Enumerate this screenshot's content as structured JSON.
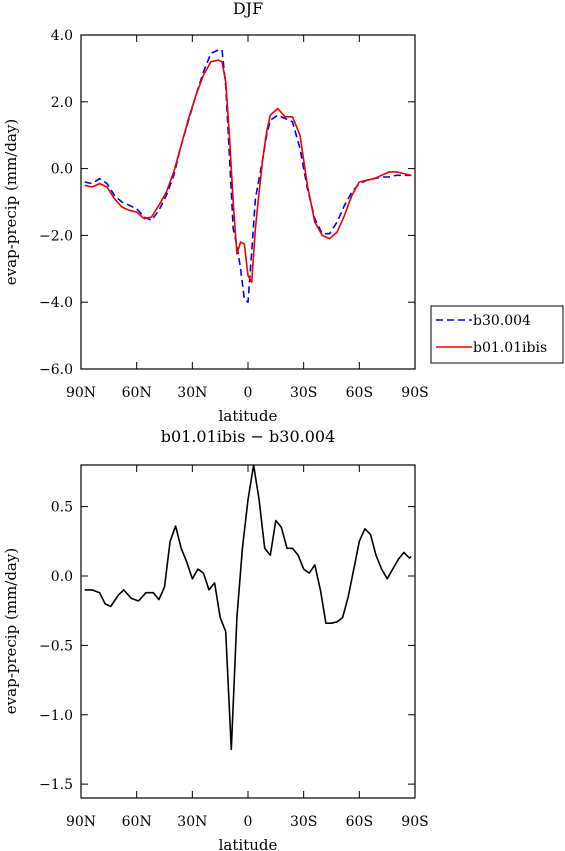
{
  "chart_data": [
    {
      "type": "line",
      "title": "DJF",
      "xlabel": "latitude",
      "ylabel": "evap-precip (mm/day)",
      "xlim": [
        90,
        -90
      ],
      "ylim": [
        -6.0,
        4.0
      ],
      "xticks": [
        90,
        60,
        30,
        0,
        -30,
        -60,
        -90
      ],
      "xtick_labels": [
        "90N",
        "60N",
        "30N",
        "0",
        "30S",
        "60S",
        "90S"
      ],
      "yticks": [
        4,
        2,
        0,
        -2,
        -4,
        -6
      ],
      "ytick_labels": [
        "4.0",
        "2.0",
        "0.0",
        "−2.0",
        "−4.0",
        "−6.0"
      ],
      "legend": "right",
      "series": [
        {
          "name": "b30.004",
          "color": "#0000ee",
          "dash": "dashed",
          "x": [
            88,
            84,
            80,
            76,
            72,
            68,
            64,
            60,
            56,
            52,
            48,
            44,
            40,
            36,
            32,
            28,
            24,
            20,
            16,
            14,
            12,
            10,
            8,
            6,
            4,
            2,
            0,
            -2,
            -4,
            -6,
            -8,
            -10,
            -12,
            -16,
            -20,
            -24,
            -28,
            -32,
            -36,
            -40,
            -44,
            -48,
            -52,
            -56,
            -60,
            -64,
            -68,
            -72,
            -76,
            -80,
            -84,
            -88
          ],
          "y": [
            -0.4,
            -0.45,
            -0.3,
            -0.45,
            -0.8,
            -1.0,
            -1.1,
            -1.2,
            -1.45,
            -1.55,
            -1.25,
            -0.8,
            -0.2,
            0.7,
            1.45,
            2.2,
            2.9,
            3.45,
            3.55,
            3.55,
            2.5,
            0.4,
            -1.8,
            -2.3,
            -3.0,
            -3.9,
            -4.0,
            -2.5,
            -0.9,
            -0.3,
            0.3,
            1.0,
            1.45,
            1.6,
            1.5,
            1.4,
            0.6,
            -0.6,
            -1.5,
            -1.95,
            -1.95,
            -1.6,
            -1.1,
            -0.7,
            -0.45,
            -0.35,
            -0.3,
            -0.25,
            -0.25,
            -0.2,
            -0.2,
            -0.2
          ]
        },
        {
          "name": "b01.01ibis",
          "color": "#ee0000",
          "dash": "solid",
          "x": [
            88,
            84,
            80,
            76,
            72,
            68,
            64,
            60,
            56,
            52,
            48,
            44,
            40,
            36,
            32,
            28,
            24,
            20,
            16,
            14,
            12,
            10,
            8,
            6,
            4,
            2,
            0,
            -2,
            -4,
            -6,
            -8,
            -10,
            -12,
            -16,
            -20,
            -24,
            -28,
            -32,
            -36,
            -40,
            -44,
            -48,
            -52,
            -56,
            -60,
            -64,
            -68,
            -72,
            -76,
            -80,
            -84,
            -88
          ],
          "y": [
            -0.5,
            -0.55,
            -0.45,
            -0.55,
            -0.9,
            -1.15,
            -1.25,
            -1.3,
            -1.5,
            -1.45,
            -1.1,
            -0.7,
            -0.1,
            0.7,
            1.5,
            2.2,
            2.8,
            3.2,
            3.25,
            3.2,
            2.6,
            1.0,
            -1.0,
            -2.55,
            -2.2,
            -2.25,
            -3.2,
            -3.4,
            -1.8,
            -0.7,
            0.3,
            1.1,
            1.6,
            1.8,
            1.55,
            1.55,
            1.0,
            -0.5,
            -1.6,
            -2.0,
            -2.1,
            -1.9,
            -1.4,
            -0.8,
            -0.4,
            -0.35,
            -0.3,
            -0.2,
            -0.1,
            -0.1,
            -0.15,
            -0.2
          ]
        }
      ]
    },
    {
      "type": "line",
      "title": "b01.01ibis − b30.004",
      "xlabel": "latitude",
      "ylabel": "evap-precip (mm/day)",
      "xlim": [
        90,
        -90
      ],
      "ylim": [
        -1.6,
        0.8
      ],
      "xticks": [
        90,
        60,
        30,
        0,
        -30,
        -60,
        -90
      ],
      "xtick_labels": [
        "90N",
        "60N",
        "30N",
        "0",
        "30S",
        "60S",
        "90S"
      ],
      "yticks": [
        0.5,
        0.0,
        -0.5,
        -1.0,
        -1.5
      ],
      "ytick_labels": [
        "0.5",
        "0.0",
        "−0.5",
        "−1.0",
        "−1.5"
      ],
      "series": [
        {
          "color": "#000000",
          "dash": "solid",
          "x": [
            88,
            84,
            80,
            77,
            74,
            70,
            67,
            63,
            59,
            55,
            51,
            48,
            45,
            42,
            39,
            36,
            33,
            30,
            27,
            24,
            21,
            18,
            15,
            12,
            9,
            6,
            3,
            0,
            -3,
            -6,
            -9,
            -12,
            -15,
            -18,
            -21,
            -24,
            -27,
            -30,
            -33,
            -36,
            -39,
            -42,
            -45,
            -48,
            -51,
            -54,
            -57,
            -60,
            -63,
            -66,
            -69,
            -72,
            -75,
            -78,
            -81,
            -84,
            -87,
            -88
          ],
          "y": [
            -0.1,
            -0.1,
            -0.12,
            -0.2,
            -0.22,
            -0.14,
            -0.1,
            -0.16,
            -0.18,
            -0.12,
            -0.12,
            -0.17,
            -0.08,
            0.25,
            0.36,
            0.2,
            0.1,
            -0.02,
            0.05,
            0.02,
            -0.1,
            -0.05,
            -0.3,
            -0.4,
            -1.25,
            -0.3,
            0.2,
            0.55,
            0.8,
            0.55,
            0.2,
            0.15,
            0.4,
            0.35,
            0.2,
            0.2,
            0.15,
            0.05,
            0.02,
            0.08,
            -0.1,
            -0.34,
            -0.34,
            -0.33,
            -0.3,
            -0.15,
            0.05,
            0.25,
            0.34,
            0.3,
            0.15,
            0.05,
            -0.02,
            0.05,
            0.12,
            0.17,
            0.13,
            0.14
          ]
        }
      ]
    }
  ]
}
